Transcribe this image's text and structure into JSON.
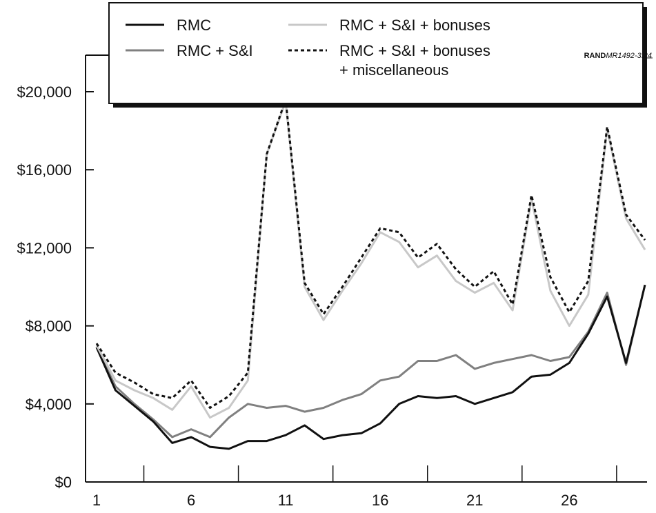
{
  "source_label_bold": "RAND",
  "source_label_italic": "MR1492-3.24",
  "chart_data": {
    "type": "line",
    "x": [
      1,
      2,
      3,
      4,
      5,
      6,
      7,
      8,
      9,
      10,
      11,
      12,
      13,
      14,
      15,
      16,
      17,
      18,
      19,
      20,
      21,
      22,
      23,
      24,
      25,
      26,
      27,
      28,
      29,
      30
    ],
    "x_tick_labels": [
      "1",
      "6",
      "11",
      "16",
      "21",
      "26"
    ],
    "x_tick_values": [
      1,
      6,
      11,
      16,
      21,
      26
    ],
    "x_minor_ticks": [
      3.5,
      8.5,
      13.5,
      18.5,
      23.5,
      28.5
    ],
    "xlim": [
      1,
      30
    ],
    "ylim": [
      0,
      20000
    ],
    "y_tick_values": [
      0,
      4000,
      8000,
      12000,
      16000,
      20000
    ],
    "y_tick_labels": [
      "$0",
      "$4,000",
      "$8,000",
      "$12,000",
      "$16,000",
      "$20,000"
    ],
    "grid": false,
    "legend_placement": "top",
    "series": [
      {
        "name": "RMC",
        "color": "#111111",
        "dash": "solid",
        "values": [
          6900,
          4700,
          3900,
          3100,
          2000,
          2300,
          1800,
          1700,
          2100,
          2100,
          2400,
          2900,
          2200,
          2400,
          2500,
          3000,
          4000,
          4400,
          4300,
          4400,
          4000,
          4300,
          4600,
          5400,
          5500,
          6100,
          7600,
          9500,
          6100,
          10100
        ]
      },
      {
        "name": "RMC + S&I",
        "color": "#808080",
        "dash": "solid",
        "values": [
          6900,
          4900,
          4000,
          3200,
          2300,
          2700,
          2300,
          3300,
          4000,
          3800,
          3900,
          3600,
          3800,
          4200,
          4500,
          5200,
          5400,
          6200,
          6200,
          6500,
          5800,
          6100,
          6300,
          6500,
          6200,
          6400,
          7700,
          9700,
          6000,
          10100
        ]
      },
      {
        "name": "RMC + S&I + bonuses",
        "color": "#c8c8c8",
        "dash": "solid",
        "values": [
          7000,
          5200,
          4700,
          4300,
          3700,
          4900,
          3300,
          3800,
          5200,
          16800,
          19500,
          10000,
          8300,
          9800,
          11200,
          12800,
          12300,
          11000,
          11600,
          10300,
          9700,
          10200,
          8800,
          14500,
          9800,
          8000,
          9600,
          18100,
          13500,
          11900
        ]
      },
      {
        "name": "RMC + S&I + bonuses + miscellaneous",
        "name_lines": [
          "RMC + S&I + bonuses",
          "+ miscellaneous"
        ],
        "color": "#111111",
        "dash": "dashed",
        "values": [
          7100,
          5600,
          5100,
          4500,
          4300,
          5200,
          3800,
          4400,
          5600,
          16800,
          19600,
          10200,
          8600,
          10000,
          11500,
          13000,
          12800,
          11500,
          12200,
          10900,
          10000,
          10800,
          9100,
          14700,
          10500,
          8700,
          10300,
          18200,
          13700,
          12400
        ]
      }
    ]
  }
}
